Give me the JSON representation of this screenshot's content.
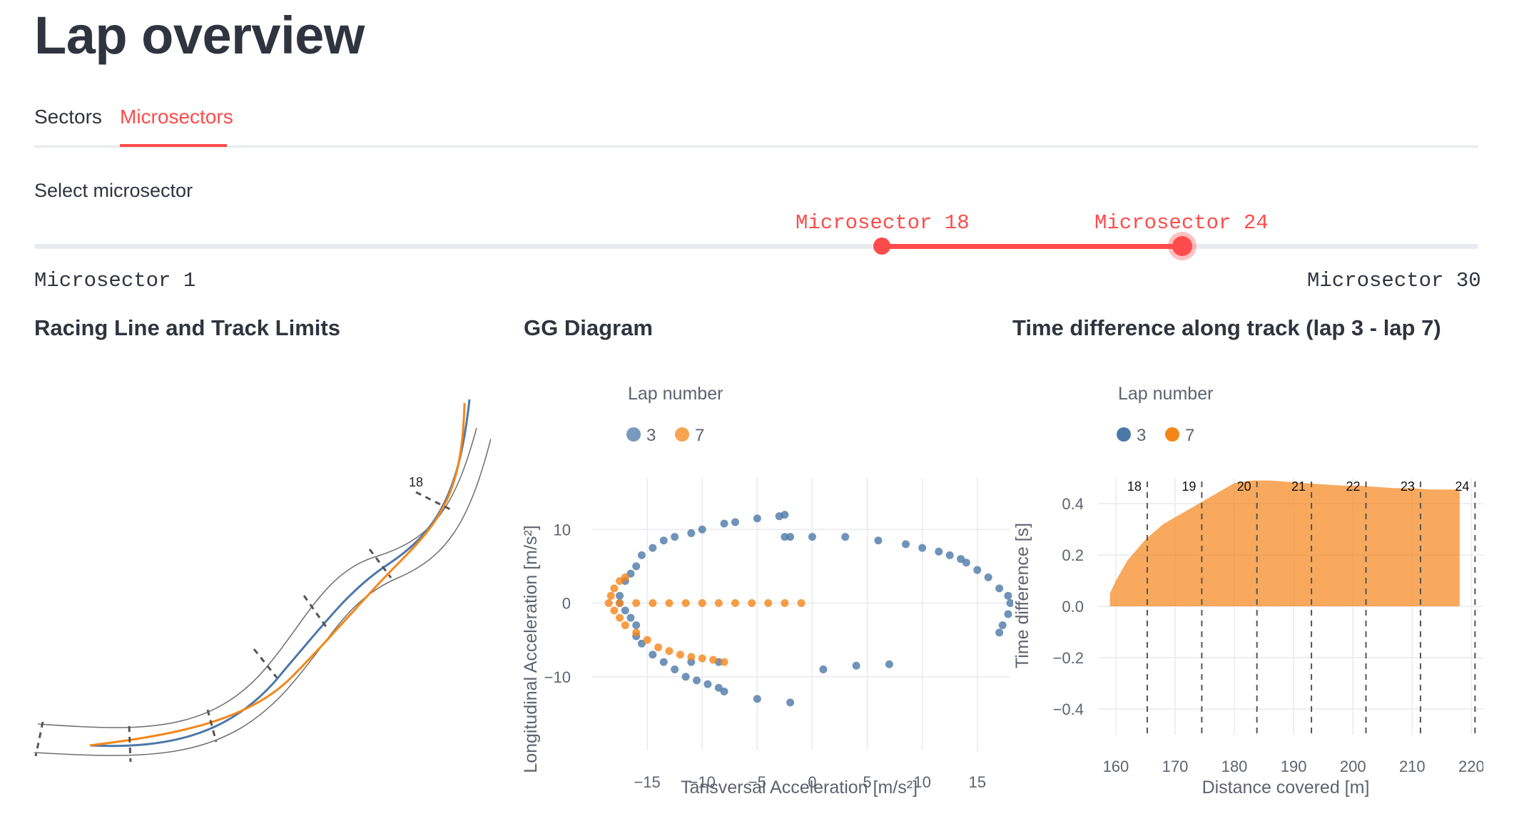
{
  "page": {
    "title": "Lap overview"
  },
  "tabs": [
    {
      "label": "Sectors",
      "active": false
    },
    {
      "label": "Microsectors",
      "active": true
    }
  ],
  "slider": {
    "label": "Select microsector",
    "value_low": "Microsector 18",
    "value_high": "Microsector 24",
    "min_label": "Microsector 1",
    "max_label": "Microsector 30",
    "range": [
      18,
      24
    ],
    "min": 1,
    "max": 30
  },
  "colors": {
    "accent": "#ff4b4b",
    "lap3": "#4c78a8",
    "lap7": "#f58518",
    "text": "#31333f"
  },
  "charts": {
    "racing_line": {
      "title": "Racing Line and Track Limits",
      "marker_label": "18"
    },
    "gg": {
      "title": "GG Diagram",
      "legend_title": "Lap number",
      "xlabel": "Tansversal Acceleration [m/s²]",
      "ylabel": "Longitudinal Acceleration [m/s²]"
    },
    "time_diff": {
      "title": "Time difference along track (lap 3 - lap 7)",
      "legend_title": "Lap number",
      "xlabel": "Distance covered [m]",
      "ylabel": "Time difference [s]"
    }
  },
  "chart_data": [
    {
      "type": "line",
      "title": "Racing Line and Track Limits",
      "series": [],
      "annotations": [
        "18"
      ]
    },
    {
      "type": "scatter",
      "title": "GG Diagram",
      "xlabel": "Tansversal Acceleration [m/s²]",
      "ylabel": "Longitudinal Acceleration [m/s²]",
      "xlim": [
        -20,
        18
      ],
      "ylim": [
        -20,
        17
      ],
      "xticks": [
        -15,
        -10,
        -5,
        0,
        5,
        10,
        15
      ],
      "yticks": [
        10,
        0,
        -10
      ],
      "legend": {
        "title": "Lap number",
        "placement": "top-left"
      },
      "series": [
        {
          "name": "3",
          "points": [
            [
              -2.5,
              12
            ],
            [
              -3,
              11.8
            ],
            [
              -5,
              11.5
            ],
            [
              -7,
              11
            ],
            [
              -8,
              10.8
            ],
            [
              -10,
              10
            ],
            [
              -11,
              9.5
            ],
            [
              -12.5,
              9
            ],
            [
              -13.5,
              8.5
            ],
            [
              -14.5,
              7.5
            ],
            [
              -15.5,
              6.5
            ],
            [
              -16,
              5
            ],
            [
              -16.5,
              4
            ],
            [
              -17,
              3
            ],
            [
              -17.5,
              1
            ],
            [
              -17.5,
              0
            ],
            [
              -17,
              -1
            ],
            [
              -16.5,
              -2
            ],
            [
              -16,
              -3
            ],
            [
              -16,
              -4.5
            ],
            [
              -15.5,
              -5.5
            ],
            [
              -14.5,
              -7
            ],
            [
              -13.5,
              -8
            ],
            [
              -12.5,
              -9
            ],
            [
              -11.5,
              -10
            ],
            [
              -10.5,
              -10.5
            ],
            [
              -9.5,
              -11
            ],
            [
              -8.5,
              -11.5
            ],
            [
              -8,
              -12
            ],
            [
              -2.5,
              9
            ],
            [
              -2,
              9
            ],
            [
              0,
              9
            ],
            [
              3,
              9
            ],
            [
              6,
              8.5
            ],
            [
              8.5,
              8
            ],
            [
              10,
              7.5
            ],
            [
              11.5,
              7
            ],
            [
              12.5,
              6.5
            ],
            [
              13.5,
              6
            ],
            [
              14,
              5.5
            ],
            [
              15,
              4.5
            ],
            [
              16,
              3.5
            ],
            [
              17,
              2
            ],
            [
              17.8,
              1
            ],
            [
              18,
              0
            ],
            [
              17.8,
              -1.5
            ],
            [
              17.3,
              -3
            ],
            [
              17,
              -4
            ],
            [
              -5,
              -13
            ],
            [
              -2,
              -13.5
            ],
            [
              1,
              -9
            ],
            [
              4,
              -8.5
            ],
            [
              7,
              -8.3
            ],
            [
              -8.5,
              -8
            ],
            [
              -11,
              -8
            ]
          ]
        },
        {
          "name": "7",
          "points": [
            [
              -17,
              3.5
            ],
            [
              -17.5,
              3
            ],
            [
              -18,
              2
            ],
            [
              -18.3,
              1
            ],
            [
              -18.5,
              0
            ],
            [
              -18,
              -1
            ],
            [
              -17.5,
              -2
            ],
            [
              -17,
              -3
            ],
            [
              -16,
              -4
            ],
            [
              -15,
              -5
            ],
            [
              -14,
              -6
            ],
            [
              -13,
              -6.5
            ],
            [
              -12,
              -7
            ],
            [
              -11,
              -7.3
            ],
            [
              -10,
              -7.5
            ],
            [
              -9,
              -7.7
            ],
            [
              -8,
              -8
            ],
            [
              -17.5,
              0
            ],
            [
              -16,
              0
            ],
            [
              -14.5,
              0
            ],
            [
              -13,
              0
            ],
            [
              -11.5,
              0
            ],
            [
              -10,
              0
            ],
            [
              -8.5,
              0
            ],
            [
              -7,
              0
            ],
            [
              -5.5,
              0
            ],
            [
              -4,
              0
            ],
            [
              -2.5,
              0
            ],
            [
              -1,
              0
            ]
          ]
        }
      ]
    },
    {
      "type": "area",
      "title": "Time difference along track (lap 3 - lap 7)",
      "xlabel": "Distance covered [m]",
      "ylabel": "Time difference [s]",
      "xlim": [
        157,
        222
      ],
      "ylim": [
        -0.5,
        0.5
      ],
      "xticks": [
        160,
        170,
        180,
        190,
        200,
        210,
        220
      ],
      "yticks": [
        0.4,
        0.2,
        0.0,
        -0.2,
        -0.4
      ],
      "legend": {
        "title": "Lap number",
        "placement": "top-left"
      },
      "series": [
        {
          "name": "3"
        },
        {
          "name": "7"
        }
      ],
      "x": [
        159,
        160,
        162,
        165,
        168,
        171,
        174,
        177,
        180,
        183,
        186,
        189,
        192,
        195,
        198,
        201,
        204,
        207,
        210,
        213,
        216,
        218
      ],
      "y": [
        0.05,
        0.1,
        0.18,
        0.26,
        0.32,
        0.36,
        0.4,
        0.44,
        0.48,
        0.49,
        0.49,
        0.485,
        0.48,
        0.475,
        0.47,
        0.47,
        0.465,
        0.46,
        0.46,
        0.455,
        0.455,
        0.455
      ],
      "sector_lines": [
        {
          "label": "18",
          "x": 165.3
        },
        {
          "label": "19",
          "x": 174.5
        },
        {
          "label": "20",
          "x": 183.8
        },
        {
          "label": "21",
          "x": 193
        },
        {
          "label": "22",
          "x": 202.2
        },
        {
          "label": "23",
          "x": 211.4
        },
        {
          "label": "24",
          "x": 220.6
        }
      ]
    }
  ]
}
